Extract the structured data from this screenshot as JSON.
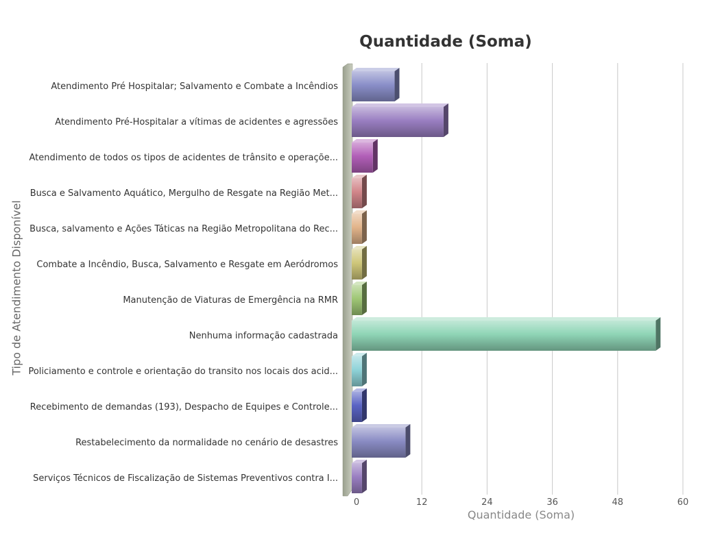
{
  "chart_data": {
    "type": "bar",
    "orientation": "horizontal",
    "title": "Quantidade (Soma)",
    "xlabel": "Quantidade (Soma)",
    "ylabel": "Tipo de Atendimento Disponível",
    "xlim": [
      0,
      60
    ],
    "x_ticks": [
      "0",
      "12",
      "24",
      "36",
      "48",
      "60"
    ],
    "grid": true,
    "categories": [
      "Atendimento Pré Hospitalar; Salvamento e Combate a Incêndios",
      "Atendimento Pré-Hospitalar a vítimas de acidentes e agressões",
      "Atendimento de todos os tipos de acidentes de trânsito e operaçõe...",
      "Busca e Salvamento Aquático, Mergulho de Resgate na Região Met...",
      "Busca, salvamento e Ações Táticas na Região Metropolitana do Rec...",
      "Combate a Incêndio, Busca, Salvamento e Resgate em Aeródromos",
      "Manutenção de Viaturas de Emergência na RMR",
      "Nenhuma informação cadastrada",
      "Policiamento e controle e orientação do transito nos locais dos acid...",
      "Recebimento de demandas (193), Despacho de Equipes e Controle...",
      "Restabelecimento da normalidade no cenário de desastres",
      "Serviços Técnicos de Fiscalização de Sistemas Preventivos contra I..."
    ],
    "values": [
      7,
      16,
      3,
      1,
      1,
      1,
      1,
      55,
      1,
      1,
      9,
      1
    ],
    "colors": [
      "#8a8fc9",
      "#9a7fc2",
      "#b25fb8",
      "#d2868a",
      "#e2b48a",
      "#cfc77a",
      "#9fc775",
      "#8fd5b6",
      "#8fd3d8",
      "#5a64c4",
      "#8a8cc4",
      "#9a7fc2"
    ]
  }
}
